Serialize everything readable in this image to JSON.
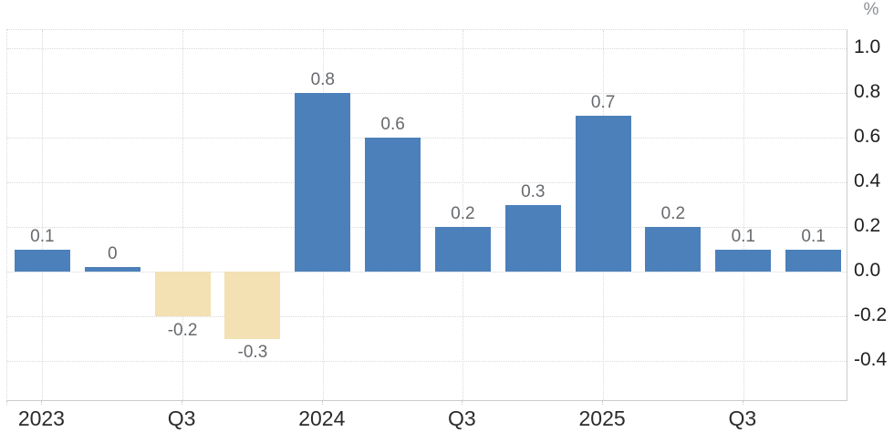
{
  "chart_data": {
    "type": "bar",
    "unit_label": "%",
    "values": [
      0.1,
      0,
      -0.2,
      -0.3,
      0.8,
      0.6,
      0.2,
      0.3,
      0.7,
      0.2,
      0.1,
      0.1
    ],
    "data_labels": [
      "0.1",
      "0",
      "-0.2",
      "-0.3",
      "0.8",
      "0.6",
      "0.2",
      "0.3",
      "0.7",
      "0.2",
      "0.1",
      "0.1"
    ],
    "x_tick_labels": [
      "2023",
      "Q3",
      "2024",
      "Q3",
      "2025",
      "Q3"
    ],
    "x_tick_slot_indices": [
      0,
      2,
      4,
      6,
      8,
      10
    ],
    "y_tick_labels": [
      "1.0",
      "0.8",
      "0.6",
      "0.4",
      "0.2",
      "0.0",
      "-0.2",
      "-0.4"
    ],
    "y_tick_values": [
      1.0,
      0.8,
      0.6,
      0.4,
      0.2,
      0.0,
      -0.2,
      -0.4
    ],
    "ylim": [
      -0.584,
      1.082
    ],
    "grid": "dotted",
    "legend": "none",
    "colors": {
      "positive_bar": "#4c80ba",
      "negative_bar": "#f3e0b3",
      "grid_line": "#d9d9d9",
      "axis_line": "#cccccc",
      "value_label": "#66696d",
      "x_tick_label": "#2b2b2b",
      "y_tick_label": "#1f1f1f",
      "unit_label": "#8b8e92"
    }
  }
}
